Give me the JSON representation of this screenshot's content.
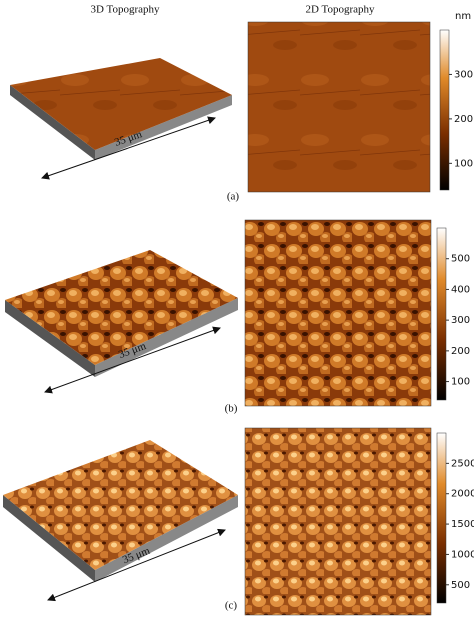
{
  "headers": [
    "3D Topography",
    "2D Topography"
  ],
  "unit": "nm",
  "panels": [
    {
      "label": "(a)",
      "scale": "35 μm",
      "colorbar_ticks": [
        100,
        200,
        300
      ]
    },
    {
      "label": "(b)",
      "scale": "35 μm",
      "colorbar_ticks": [
        100,
        200,
        300,
        400,
        500
      ]
    },
    {
      "label": "(c)",
      "scale": "35 μm",
      "colorbar_ticks": [
        500,
        1000,
        1500,
        2000,
        2500
      ]
    }
  ]
}
